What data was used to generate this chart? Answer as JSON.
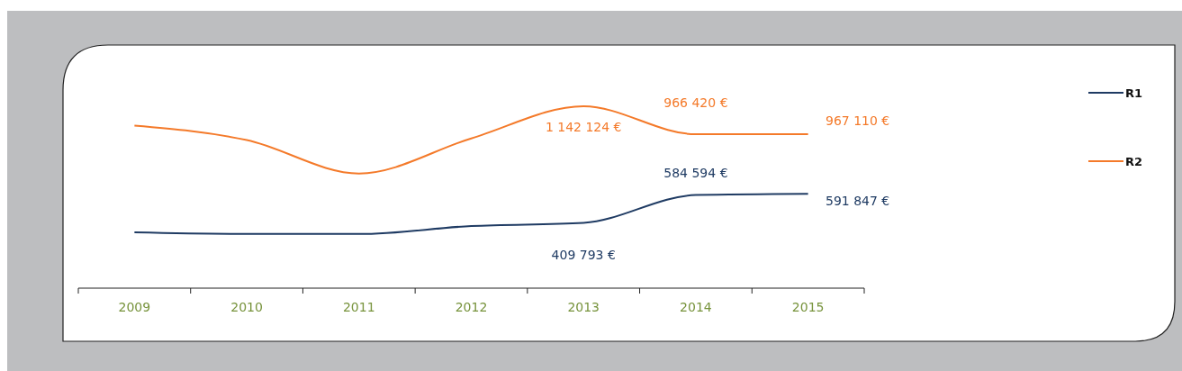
{
  "chart_data": {
    "type": "line",
    "categories": [
      "2009",
      "2010",
      "2011",
      "2012",
      "2013",
      "2014",
      "2015"
    ],
    "series": [
      {
        "name": "R1",
        "color": "#1f3b63",
        "values": [
          350000,
          340000,
          340000,
          390000,
          409793,
          584594,
          591847
        ],
        "value_labels": [
          null,
          null,
          null,
          null,
          "409 793 €",
          "584 594 €",
          "591 847 €"
        ]
      },
      {
        "name": "R2",
        "color": "#f47a2a",
        "values": [
          1020000,
          930000,
          720000,
          940000,
          1142124,
          966420,
          967110
        ],
        "value_labels": [
          null,
          null,
          null,
          null,
          "1 142 124 €",
          "966 420 €",
          "967 110 €"
        ]
      }
    ],
    "tick_labels": "x",
    "legend": "right",
    "marker": "none",
    "line_style": "solid"
  }
}
